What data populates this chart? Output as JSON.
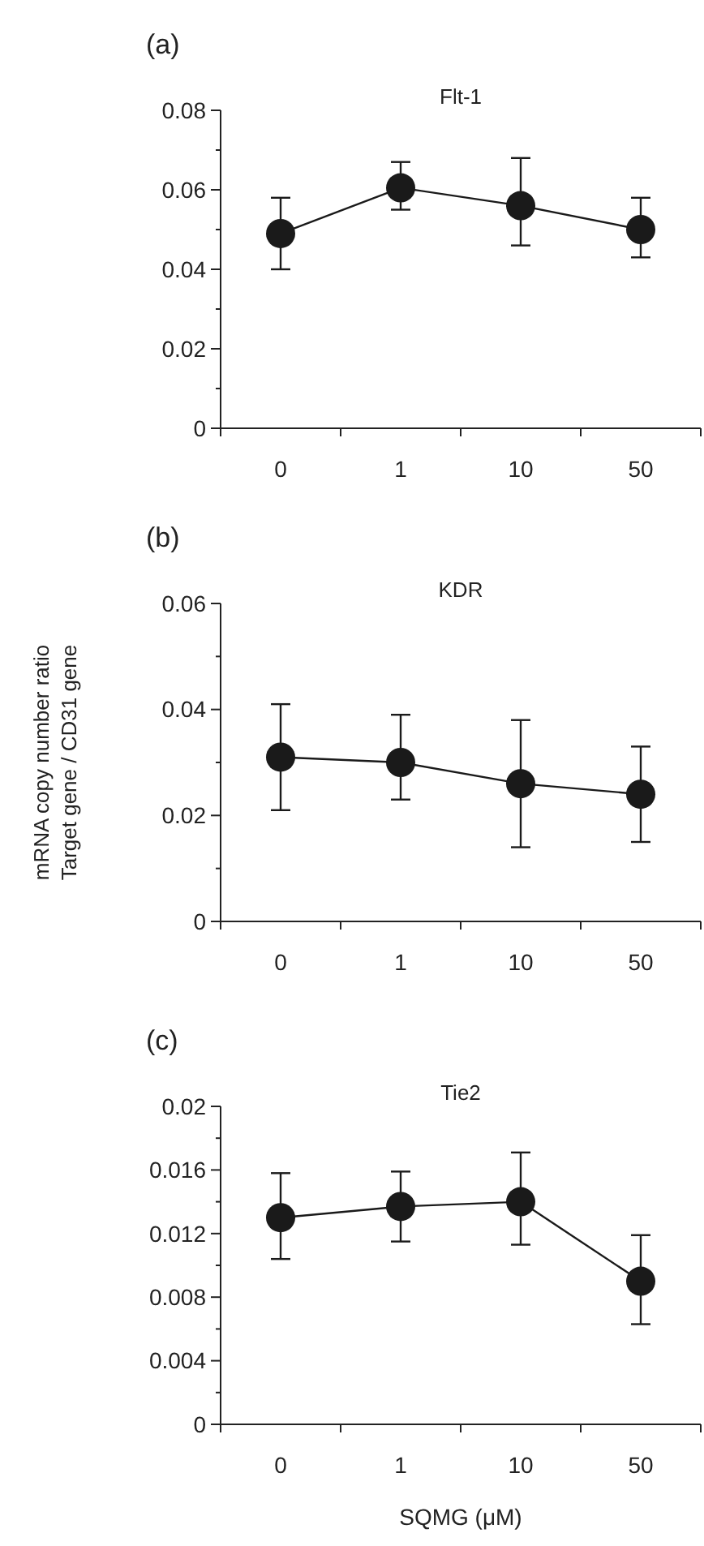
{
  "chart_data": [
    {
      "type": "line",
      "title": "Flt-1",
      "annotations": [
        "(a)"
      ],
      "categories": [
        "0",
        "1",
        "10",
        "50"
      ],
      "marker": "circle",
      "series": [
        {
          "color": "#1a1a1a",
          "values": [
            0.049,
            0.0605,
            0.056,
            0.05
          ],
          "errors": [
            [
              0.04,
              0.058
            ],
            [
              0.055,
              0.067
            ],
            [
              0.046,
              0.068
            ],
            [
              0.043,
              0.058
            ]
          ]
        }
      ],
      "ylim": [
        0,
        0.08
      ],
      "yticks": [
        0,
        {
          "value": 0.01,
          "label": null
        },
        0.02,
        {
          "value": 0.03,
          "label": null
        },
        0.04,
        {
          "value": 0.05,
          "label": null
        },
        0.06,
        {
          "value": 0.07,
          "label": null
        },
        0.08
      ]
    },
    {
      "type": "line",
      "title": "KDR",
      "annotations": [
        "(b)"
      ],
      "ylabel": "mRNA copy number ratio\nTarget gene / CD31 gene",
      "categories": [
        "0",
        "1",
        "10",
        "50"
      ],
      "marker": "circle",
      "series": [
        {
          "color": "#1a1a1a",
          "values": [
            0.031,
            0.03,
            0.026,
            0.024
          ],
          "errors": [
            [
              0.021,
              0.041
            ],
            [
              0.023,
              0.039
            ],
            [
              0.014,
              0.038
            ],
            [
              0.015,
              0.033
            ]
          ]
        }
      ],
      "ylim": [
        0,
        0.06
      ],
      "yticks": [
        0,
        {
          "value": 0.01,
          "label": null
        },
        0.02,
        {
          "value": 0.03,
          "label": null
        },
        0.04,
        {
          "value": 0.05,
          "label": null
        },
        0.06
      ]
    },
    {
      "type": "line",
      "title": "Tie2",
      "annotations": [
        "(c)"
      ],
      "xlabel": "SQMG (μM)",
      "categories": [
        "0",
        "1",
        "10",
        "50"
      ],
      "marker": "circle",
      "series": [
        {
          "color": "#1a1a1a",
          "values": [
            0.013,
            0.0137,
            0.014,
            0.009
          ],
          "errors": [
            [
              0.0104,
              0.0158
            ],
            [
              0.0115,
              0.0159
            ],
            [
              0.0113,
              0.0171
            ],
            [
              0.0063,
              0.0119
            ]
          ]
        }
      ],
      "ylim": [
        0,
        0.02
      ],
      "yticks": [
        0,
        {
          "value": 0.002,
          "label": null
        },
        0.004,
        {
          "value": 0.006,
          "label": null
        },
        0.008,
        {
          "value": 0.01,
          "label": null
        },
        0.012,
        {
          "value": 0.014,
          "label": null
        },
        0.016,
        {
          "value": 0.018,
          "label": null
        },
        0.02
      ]
    }
  ]
}
